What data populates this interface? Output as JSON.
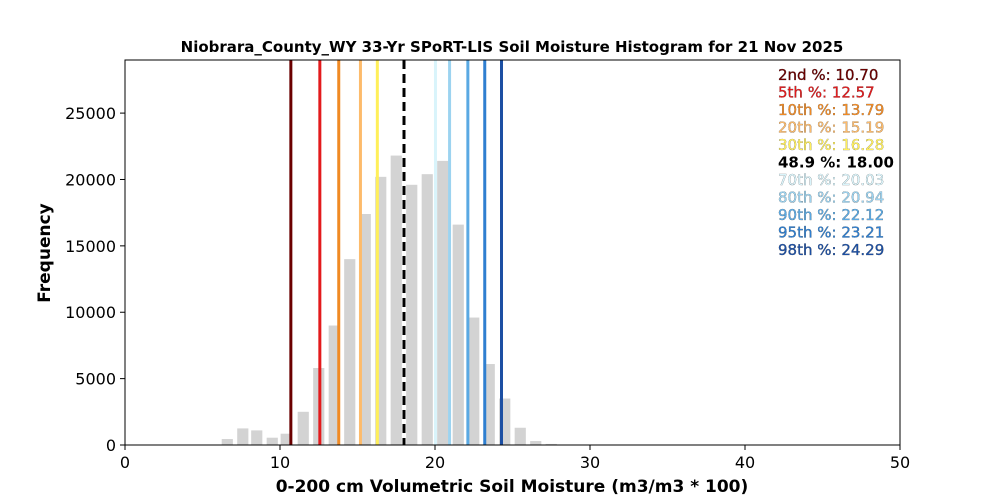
{
  "chart_data": {
    "type": "bar",
    "title": "Niobrara_County_WY 33-Yr SPoRT-LIS Soil Moisture Histogram for 21 Nov 2025",
    "xlabel": "0-200 cm Volumetric Soil Moisture (m3/m3 * 100)",
    "ylabel": "Frequency",
    "xlim": [
      0,
      50
    ],
    "ylim": [
      0,
      29000
    ],
    "xticks": [
      0,
      10,
      20,
      30,
      40,
      50
    ],
    "yticks": [
      0,
      5000,
      10000,
      15000,
      20000,
      25000
    ],
    "bin_width": 1,
    "bar_color": "#d3d3d3",
    "bins": [
      {
        "x": 6.6,
        "y": 450
      },
      {
        "x": 7.6,
        "y": 1250
      },
      {
        "x": 8.5,
        "y": 1100
      },
      {
        "x": 9.5,
        "y": 550
      },
      {
        "x": 10.4,
        "y": 850
      },
      {
        "x": 11.5,
        "y": 2500
      },
      {
        "x": 12.5,
        "y": 5800
      },
      {
        "x": 13.5,
        "y": 9000
      },
      {
        "x": 14.5,
        "y": 14000
      },
      {
        "x": 15.5,
        "y": 17400
      },
      {
        "x": 16.5,
        "y": 20200
      },
      {
        "x": 17.5,
        "y": 21800
      },
      {
        "x": 18.5,
        "y": 19600
      },
      {
        "x": 19.5,
        "y": 20400
      },
      {
        "x": 20.5,
        "y": 21400
      },
      {
        "x": 21.5,
        "y": 16600
      },
      {
        "x": 22.5,
        "y": 9600
      },
      {
        "x": 23.5,
        "y": 6100
      },
      {
        "x": 24.5,
        "y": 3500
      },
      {
        "x": 25.5,
        "y": 1300
      },
      {
        "x": 26.5,
        "y": 300
      },
      {
        "x": 27.5,
        "y": 80
      }
    ],
    "percentile_lines": [
      {
        "label": "2nd %: 10.70",
        "value": 10.7,
        "color": "#6b0000",
        "dashed": false,
        "bold": false
      },
      {
        "label": "5th %: 12.57",
        "value": 12.57,
        "color": "#e31a1c",
        "dashed": false,
        "bold": false
      },
      {
        "label": "10th %: 13.79",
        "value": 13.79,
        "color": "#f08a24",
        "dashed": false,
        "bold": false
      },
      {
        "label": "20th %: 15.19",
        "value": 15.19,
        "color": "#fdbb6b",
        "dashed": false,
        "bold": false
      },
      {
        "label": "30th %: 16.28",
        "value": 16.28,
        "color": "#ffef5a",
        "dashed": false,
        "bold": false
      },
      {
        "label": "48.9 %: 18.00",
        "value": 18.0,
        "color": "#000000",
        "dashed": true,
        "bold": true
      },
      {
        "label": "70th %: 20.03",
        "value": 20.03,
        "color": "#d9f4fb",
        "dashed": false,
        "bold": false
      },
      {
        "label": "80th %: 20.94",
        "value": 20.94,
        "color": "#9cd3f0",
        "dashed": false,
        "bold": false
      },
      {
        "label": "90th %: 22.12",
        "value": 22.12,
        "color": "#5aa9e3",
        "dashed": false,
        "bold": false
      },
      {
        "label": "95th %: 23.21",
        "value": 23.21,
        "color": "#2f7fd0",
        "dashed": false,
        "bold": false
      },
      {
        "label": "98th %: 24.29",
        "value": 24.29,
        "color": "#1c4fa3",
        "dashed": false,
        "bold": false
      }
    ],
    "legend_placement": "top-right",
    "grid": false
  }
}
